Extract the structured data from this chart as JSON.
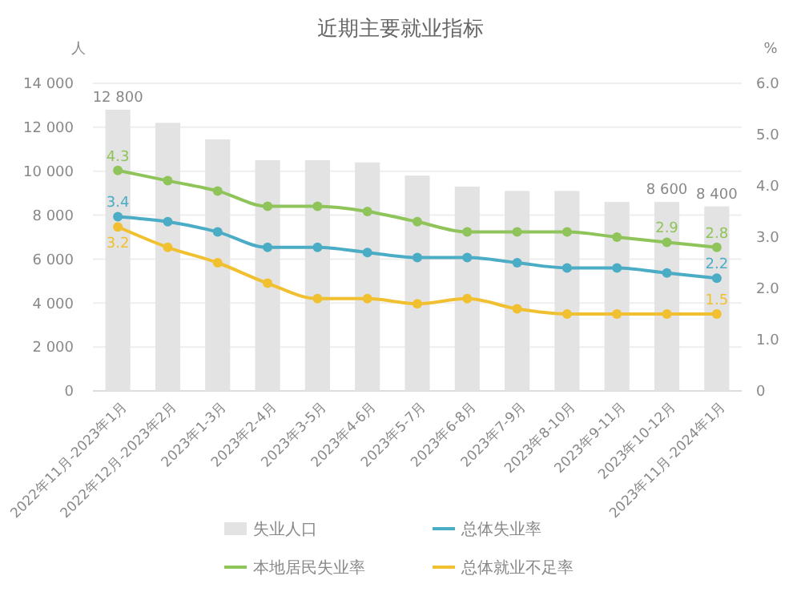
{
  "chart_data": {
    "type": "bar",
    "title": "近期主要就业指标",
    "ylabel": "人",
    "y2label": "%",
    "categories": [
      "2022年11月-2023年1月",
      "2022年12月-2023年2月",
      "2023年1-3月",
      "2023年2-4月",
      "2023年3-5月",
      "2023年4-6月",
      "2023年5-7月",
      "2023年6-8月",
      "2023年7-9月",
      "2023年8-10月",
      "2023年9-11月",
      "2023年10-12月",
      "2023年11月-2024年1月"
    ],
    "series": [
      {
        "name": "失业人口",
        "color": "#e3e3e3",
        "values": [
          12800,
          12200,
          11450,
          10500,
          10500,
          10400,
          9800,
          9300,
          9100,
          9100,
          8600,
          8600,
          8400
        ],
        "value_labels": [
          "12 800",
          null,
          null,
          null,
          null,
          null,
          null,
          null,
          null,
          null,
          null,
          "8 600",
          "8 400"
        ]
      },
      {
        "name": "总体失业率",
        "type": "line",
        "axis": "y2",
        "color": "#4bacc6",
        "values": [
          3.4,
          3.3,
          3.1,
          2.8,
          2.8,
          2.7,
          2.6,
          2.6,
          2.5,
          2.4,
          2.4,
          2.3,
          2.2
        ],
        "value_labels": [
          "3.4",
          null,
          null,
          null,
          null,
          null,
          null,
          null,
          null,
          null,
          null,
          null,
          "2.2"
        ]
      },
      {
        "name": "本地居民失业率",
        "type": "line",
        "axis": "y2",
        "color": "#8fc45a",
        "values": [
          4.3,
          4.1,
          3.9,
          3.6,
          3.6,
          3.5,
          3.3,
          3.1,
          3.1,
          3.1,
          3.0,
          2.9,
          2.8
        ],
        "value_labels": [
          "4.3",
          null,
          null,
          null,
          null,
          null,
          null,
          null,
          null,
          null,
          null,
          "2.9",
          "2.8"
        ]
      },
      {
        "name": "总体就业不足率",
        "type": "line",
        "axis": "y2",
        "color": "#f0c030",
        "values": [
          3.2,
          2.8,
          2.5,
          2.1,
          1.8,
          1.8,
          1.7,
          1.8,
          1.6,
          1.5,
          1.5,
          1.5,
          1.5
        ],
        "value_labels": [
          "3.2",
          null,
          null,
          null,
          null,
          null,
          null,
          null,
          null,
          null,
          null,
          null,
          "1.5"
        ]
      }
    ],
    "ylim": [
      0,
      14000
    ],
    "yticks": [
      {
        "value": 0,
        "label": "0"
      },
      {
        "value": 2000,
        "label": "2 000"
      },
      {
        "value": 4000,
        "label": "4 000"
      },
      {
        "value": 6000,
        "label": "6 000"
      },
      {
        "value": 8000,
        "label": "8 000"
      },
      {
        "value": 10000,
        "label": "10 000"
      },
      {
        "value": 12000,
        "label": "12 000"
      },
      {
        "value": 14000,
        "label": "14 000"
      }
    ],
    "y2lim": [
      0,
      6
    ],
    "y2ticks": [
      0,
      {
        "value": 1,
        "label": "1.0"
      },
      {
        "value": 2,
        "label": "2.0"
      },
      {
        "value": 3,
        "label": "3.0"
      },
      {
        "value": 4,
        "label": "4.0"
      },
      {
        "value": 5,
        "label": "5.0"
      },
      {
        "value": 6,
        "label": "6.0"
      }
    ],
    "grid": "y",
    "legend": "bottom",
    "marker": "circle",
    "line_style": "solid"
  }
}
